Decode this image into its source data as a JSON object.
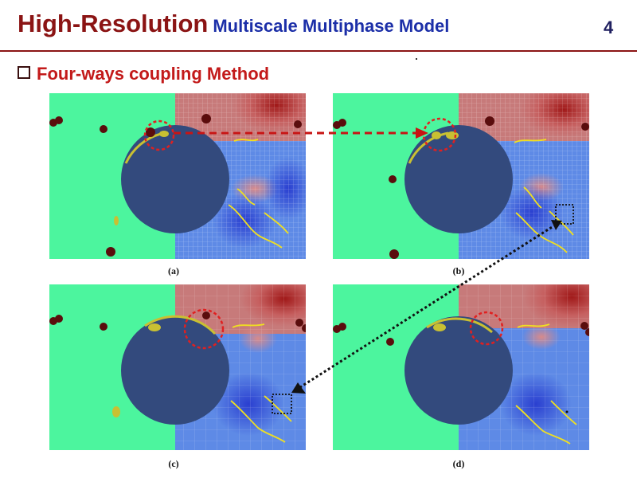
{
  "slide": {
    "title": "High-Resolution",
    "subtitle": "Multiscale Multiphase Model",
    "number": "4"
  },
  "bullet": {
    "text": "Four-ways coupling Method"
  },
  "panels": [
    {
      "caption": "(a)"
    },
    {
      "caption": "(b)"
    },
    {
      "caption": "(c)"
    },
    {
      "caption": "(d)"
    }
  ],
  "colors": {
    "title": "#8b1414",
    "subtitle": "#1c2fa8",
    "bullet": "#c31a1a",
    "background_fluid": "#4cf59e",
    "cylinder": "#334a7d",
    "highlight_circle": "#e02020",
    "region_box": "#111111"
  }
}
